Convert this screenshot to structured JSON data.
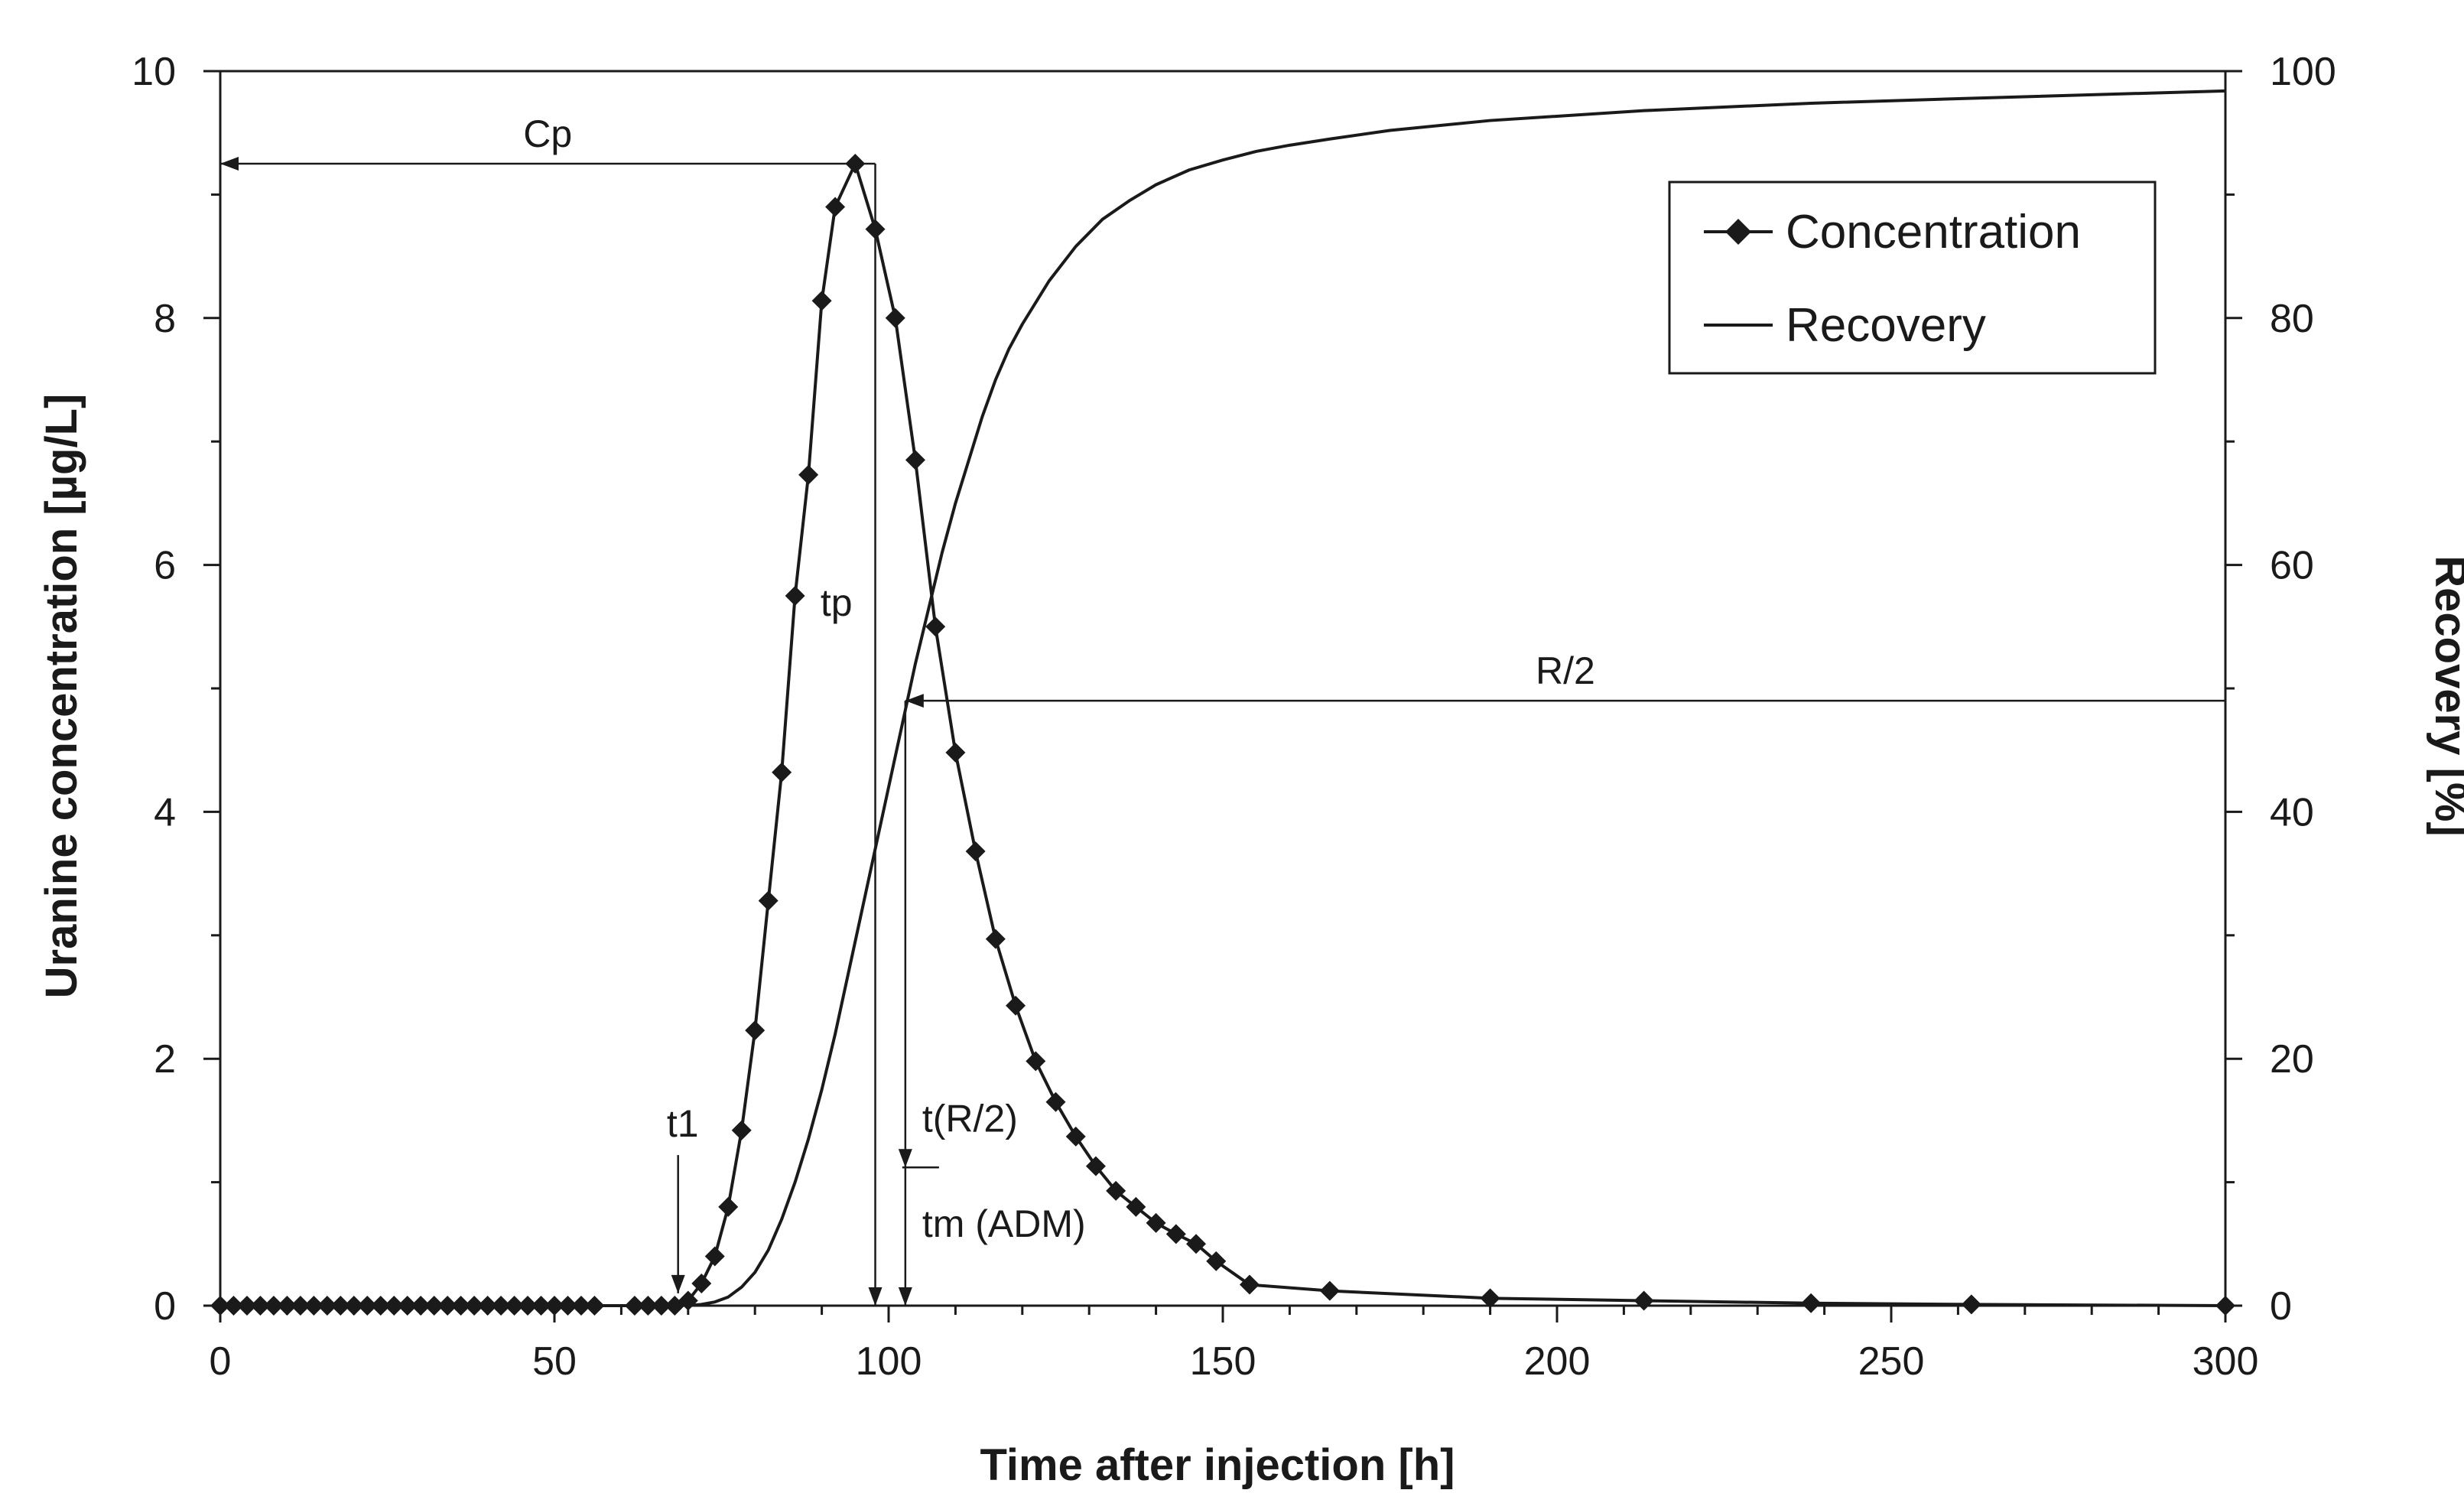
{
  "chart_data": {
    "type": "line",
    "title": "",
    "xlabel": "Time after injection [h]",
    "ylabel": "Uranine concentration [µg/L]",
    "y2label": "Recovery [%]",
    "xlim": [
      0,
      300
    ],
    "ylim": [
      0,
      10
    ],
    "y2lim": [
      0,
      100
    ],
    "x_ticks": [
      0,
      50,
      100,
      150,
      200,
      250,
      300
    ],
    "y_ticks": [
      0,
      2,
      4,
      6,
      8,
      10
    ],
    "y2_ticks": [
      0,
      20,
      40,
      60,
      80,
      100
    ],
    "grid": false,
    "legend_position": "top-right",
    "series": [
      {
        "name": "Concentration",
        "axis": "left",
        "marker": "diamond",
        "x": [
          0,
          2,
          4,
          6,
          8,
          10,
          12,
          14,
          16,
          18,
          20,
          22,
          24,
          26,
          28,
          30,
          32,
          34,
          36,
          38,
          40,
          42,
          44,
          46,
          48,
          50,
          52,
          54,
          56,
          62,
          64,
          66,
          68,
          70,
          72,
          74,
          76,
          78,
          80,
          82,
          84,
          86,
          88,
          90,
          92,
          95,
          98,
          101,
          104,
          107,
          110,
          113,
          116,
          119,
          122,
          125,
          128,
          131,
          134,
          137,
          140,
          143,
          146,
          149,
          154,
          166,
          190,
          213,
          238,
          262,
          300
        ],
        "values": [
          0,
          0,
          0,
          0,
          0,
          0,
          0,
          0,
          0,
          0,
          0,
          0,
          0,
          0,
          0,
          0,
          0,
          0,
          0,
          0,
          0,
          0,
          0,
          0,
          0,
          0,
          0,
          0,
          0,
          0,
          0,
          0,
          0,
          0.04,
          0.18,
          0.4,
          0.8,
          1.42,
          2.23,
          3.28,
          4.32,
          5.75,
          6.73,
          8.14,
          8.9,
          9.25,
          8.72,
          8.0,
          6.85,
          5.5,
          4.48,
          3.68,
          2.97,
          2.43,
          1.98,
          1.65,
          1.37,
          1.13,
          0.93,
          0.8,
          0.67,
          0.58,
          0.5,
          0.36,
          0.17,
          0.12,
          0.06,
          0.04,
          0.02,
          0.01,
          0.0
        ]
      },
      {
        "name": "Recovery",
        "axis": "right",
        "marker": "none",
        "x": [
          70,
          72,
          74,
          76,
          78,
          80,
          82,
          84,
          86,
          88,
          90,
          92,
          94,
          96,
          98,
          100,
          102,
          104,
          106,
          108,
          110,
          112,
          114,
          116,
          118,
          120,
          124,
          128,
          132,
          136,
          140,
          145,
          150,
          155,
          160,
          166,
          175,
          190,
          213,
          238,
          262,
          300
        ],
        "values": [
          0,
          0.1,
          0.3,
          0.7,
          1.5,
          2.7,
          4.5,
          7.0,
          10.0,
          13.5,
          17.5,
          22.0,
          27.0,
          32.0,
          37.0,
          42.0,
          47.0,
          52.0,
          56.5,
          61.0,
          65.0,
          68.5,
          72.0,
          75.0,
          77.5,
          79.5,
          83.0,
          85.8,
          88.0,
          89.5,
          90.8,
          92.0,
          92.8,
          93.5,
          94.0,
          94.5,
          95.2,
          96.0,
          96.8,
          97.4,
          97.8,
          98.4
        ]
      }
    ],
    "annotations": [
      {
        "label": "Cp",
        "type": "horizontal-arrow",
        "y": 9.25,
        "x_from": 98,
        "x_to": 0,
        "axis": "left"
      },
      {
        "label": "tp",
        "type": "vertical-arrow",
        "x": 98,
        "y_from": 9.25,
        "y_to": 0
      },
      {
        "label": "R/2",
        "type": "horizontal-arrow",
        "y": 49,
        "x_from": 300,
        "x_to": 102.5,
        "axis": "right"
      },
      {
        "label": "t(R/2)",
        "type": "vertical-arrow",
        "x": 102.5,
        "y_from": 4.9,
        "y_to": 1.12
      },
      {
        "label": "tm (ADM)",
        "type": "vertical-arrow",
        "x": 102.5,
        "y_from": 1.12,
        "y_to": 0
      },
      {
        "label": "t1",
        "type": "vertical-arrow",
        "x": 68.5,
        "y_from": 1.22,
        "y_to": 0.1
      }
    ]
  }
}
